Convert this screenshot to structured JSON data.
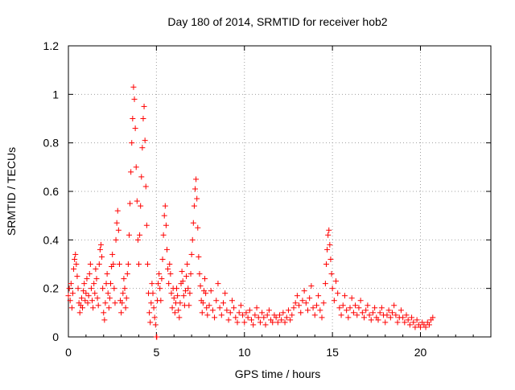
{
  "chart_data": {
    "type": "scatter",
    "title": "Day 180 of 2014, SRMTID for receiver hob2",
    "xlabel": "GPS time / hours",
    "ylabel": "SRMTID / TECUs",
    "xlim": [
      0,
      24
    ],
    "ylim": [
      0,
      1.2
    ],
    "xticks": [
      0,
      5,
      10,
      15,
      20
    ],
    "yticks": [
      0,
      0.2,
      0.4,
      0.6,
      0.8,
      1,
      1.2
    ],
    "xtick_labels": [
      "0",
      "5",
      "10",
      "15",
      "20"
    ],
    "ytick_labels": [
      "0",
      "0.2",
      "0.4",
      "0.6",
      "0.8",
      "1",
      "1.2"
    ],
    "grid": true,
    "marker": "plus",
    "marker_color": "#ff0000",
    "series": [
      {
        "name": "SRMTID",
        "points": [
          [
            0.0,
            0.17
          ],
          [
            0.05,
            0.2
          ],
          [
            0.1,
            0.15
          ],
          [
            0.15,
            0.22
          ],
          [
            0.2,
            0.12
          ],
          [
            0.25,
            0.18
          ],
          [
            0.3,
            0.28
          ],
          [
            0.35,
            0.32
          ],
          [
            0.4,
            0.34
          ],
          [
            0.45,
            0.3
          ],
          [
            0.5,
            0.25
          ],
          [
            0.55,
            0.2
          ],
          [
            0.6,
            0.14
          ],
          [
            0.65,
            0.1
          ],
          [
            0.7,
            0.13
          ],
          [
            0.75,
            0.16
          ],
          [
            0.8,
            0.12
          ],
          [
            0.85,
            0.19
          ],
          [
            0.9,
            0.22
          ],
          [
            0.95,
            0.15
          ],
          [
            1.0,
            0.18
          ],
          [
            1.05,
            0.24
          ],
          [
            1.1,
            0.14
          ],
          [
            1.15,
            0.17
          ],
          [
            1.2,
            0.26
          ],
          [
            1.25,
            0.3
          ],
          [
            1.3,
            0.2
          ],
          [
            1.35,
            0.15
          ],
          [
            1.4,
            0.12
          ],
          [
            1.45,
            0.22
          ],
          [
            1.5,
            0.18
          ],
          [
            1.55,
            0.28
          ],
          [
            1.6,
            0.24
          ],
          [
            1.65,
            0.16
          ],
          [
            1.7,
            0.13
          ],
          [
            1.75,
            0.3
          ],
          [
            1.8,
            0.36
          ],
          [
            1.85,
            0.38
          ],
          [
            1.9,
            0.33
          ],
          [
            1.95,
            0.2
          ],
          [
            2.0,
            0.1
          ],
          [
            2.05,
            0.07
          ],
          [
            2.1,
            0.14
          ],
          [
            2.15,
            0.22
          ],
          [
            2.2,
            0.26
          ],
          [
            2.25,
            0.18
          ],
          [
            2.3,
            0.12
          ],
          [
            2.35,
            0.16
          ],
          [
            2.4,
            0.22
          ],
          [
            2.45,
            0.29
          ],
          [
            2.5,
            0.34
          ],
          [
            2.55,
            0.3
          ],
          [
            2.6,
            0.2
          ],
          [
            2.65,
            0.14
          ],
          [
            2.7,
            0.4
          ],
          [
            2.75,
            0.47
          ],
          [
            2.8,
            0.52
          ],
          [
            2.85,
            0.44
          ],
          [
            2.9,
            0.3
          ],
          [
            2.95,
            0.15
          ],
          [
            3.0,
            0.1
          ],
          [
            3.05,
            0.14
          ],
          [
            3.1,
            0.18
          ],
          [
            3.15,
            0.24
          ],
          [
            3.2,
            0.2
          ],
          [
            3.25,
            0.12
          ],
          [
            3.3,
            0.16
          ],
          [
            3.35,
            0.26
          ],
          [
            3.4,
            0.3
          ],
          [
            3.45,
            0.42
          ],
          [
            3.5,
            0.55
          ],
          [
            3.55,
            0.68
          ],
          [
            3.6,
            0.8
          ],
          [
            3.65,
            0.9
          ],
          [
            3.7,
            1.03
          ],
          [
            3.75,
            0.98
          ],
          [
            3.8,
            0.86
          ],
          [
            3.85,
            0.7
          ],
          [
            3.9,
            0.56
          ],
          [
            3.95,
            0.4
          ],
          [
            4.0,
            0.3
          ],
          [
            4.05,
            0.42
          ],
          [
            4.1,
            0.54
          ],
          [
            4.15,
            0.66
          ],
          [
            4.2,
            0.78
          ],
          [
            4.25,
            0.9
          ],
          [
            4.3,
            0.95
          ],
          [
            4.35,
            0.81
          ],
          [
            4.4,
            0.62
          ],
          [
            4.45,
            0.46
          ],
          [
            4.5,
            0.3
          ],
          [
            4.55,
            0.18
          ],
          [
            4.6,
            0.1
          ],
          [
            4.65,
            0.06
          ],
          [
            4.7,
            0.14
          ],
          [
            4.75,
            0.22
          ],
          [
            4.8,
            0.18
          ],
          [
            4.85,
            0.12
          ],
          [
            4.9,
            0.08
          ],
          [
            4.95,
            0.05
          ],
          [
            5.0,
            0.0
          ],
          [
            5.02,
            0.0
          ],
          [
            5.05,
            0.15
          ],
          [
            5.1,
            0.22
          ],
          [
            5.15,
            0.26
          ],
          [
            5.2,
            0.2
          ],
          [
            5.25,
            0.15
          ],
          [
            5.3,
            0.24
          ],
          [
            5.35,
            0.32
          ],
          [
            5.4,
            0.42
          ],
          [
            5.45,
            0.5
          ],
          [
            5.5,
            0.54
          ],
          [
            5.55,
            0.46
          ],
          [
            5.6,
            0.36
          ],
          [
            5.65,
            0.28
          ],
          [
            5.7,
            0.22
          ],
          [
            5.75,
            0.3
          ],
          [
            5.8,
            0.26
          ],
          [
            5.85,
            0.18
          ],
          [
            5.9,
            0.12
          ],
          [
            5.95,
            0.2
          ],
          [
            6.0,
            0.16
          ],
          [
            6.05,
            0.1
          ],
          [
            6.1,
            0.14
          ],
          [
            6.15,
            0.2
          ],
          [
            6.2,
            0.17
          ],
          [
            6.25,
            0.11
          ],
          [
            6.3,
            0.08
          ],
          [
            6.35,
            0.14
          ],
          [
            6.4,
            0.22
          ],
          [
            6.45,
            0.27
          ],
          [
            6.5,
            0.23
          ],
          [
            6.55,
            0.17
          ],
          [
            6.6,
            0.13
          ],
          [
            6.65,
            0.19
          ],
          [
            6.7,
            0.25
          ],
          [
            6.75,
            0.3
          ],
          [
            6.8,
            0.2
          ],
          [
            6.85,
            0.13
          ],
          [
            6.9,
            0.18
          ],
          [
            6.95,
            0.26
          ],
          [
            7.0,
            0.34
          ],
          [
            7.05,
            0.4
          ],
          [
            7.1,
            0.47
          ],
          [
            7.15,
            0.54
          ],
          [
            7.2,
            0.61
          ],
          [
            7.25,
            0.65
          ],
          [
            7.3,
            0.57
          ],
          [
            7.35,
            0.45
          ],
          [
            7.4,
            0.33
          ],
          [
            7.45,
            0.26
          ],
          [
            7.5,
            0.21
          ],
          [
            7.55,
            0.15
          ],
          [
            7.6,
            0.1
          ],
          [
            7.65,
            0.14
          ],
          [
            7.7,
            0.19
          ],
          [
            7.75,
            0.24
          ],
          [
            7.8,
            0.18
          ],
          [
            7.85,
            0.12
          ],
          [
            7.9,
            0.09
          ],
          [
            8.0,
            0.13
          ],
          [
            8.1,
            0.19
          ],
          [
            8.2,
            0.11
          ],
          [
            8.3,
            0.08
          ],
          [
            8.4,
            0.15
          ],
          [
            8.5,
            0.22
          ],
          [
            8.6,
            0.12
          ],
          [
            8.7,
            0.09
          ],
          [
            8.8,
            0.14
          ],
          [
            8.9,
            0.18
          ],
          [
            9.0,
            0.11
          ],
          [
            9.1,
            0.07
          ],
          [
            9.2,
            0.1
          ],
          [
            9.3,
            0.15
          ],
          [
            9.4,
            0.12
          ],
          [
            9.5,
            0.08
          ],
          [
            9.6,
            0.06
          ],
          [
            9.7,
            0.1
          ],
          [
            9.8,
            0.13
          ],
          [
            9.9,
            0.09
          ],
          [
            10.0,
            0.06
          ],
          [
            10.1,
            0.1
          ],
          [
            10.2,
            0.08
          ],
          [
            10.3,
            0.11
          ],
          [
            10.4,
            0.07
          ],
          [
            10.5,
            0.05
          ],
          [
            10.6,
            0.09
          ],
          [
            10.7,
            0.12
          ],
          [
            10.8,
            0.08
          ],
          [
            10.9,
            0.06
          ],
          [
            11.0,
            0.1
          ],
          [
            11.1,
            0.08
          ],
          [
            11.2,
            0.05
          ],
          [
            11.3,
            0.09
          ],
          [
            11.4,
            0.11
          ],
          [
            11.5,
            0.07
          ],
          [
            11.6,
            0.06
          ],
          [
            11.7,
            0.09
          ],
          [
            11.8,
            0.08
          ],
          [
            11.9,
            0.06
          ],
          [
            12.0,
            0.09
          ],
          [
            12.1,
            0.07
          ],
          [
            12.2,
            0.1
          ],
          [
            12.3,
            0.06
          ],
          [
            12.4,
            0.08
          ],
          [
            12.5,
            0.11
          ],
          [
            12.6,
            0.07
          ],
          [
            12.7,
            0.09
          ],
          [
            12.8,
            0.12
          ],
          [
            12.9,
            0.14
          ],
          [
            13.0,
            0.17
          ],
          [
            13.1,
            0.13
          ],
          [
            13.2,
            0.1
          ],
          [
            13.3,
            0.15
          ],
          [
            13.4,
            0.19
          ],
          [
            13.5,
            0.14
          ],
          [
            13.6,
            0.11
          ],
          [
            13.7,
            0.16
          ],
          [
            13.8,
            0.21
          ],
          [
            13.9,
            0.12
          ],
          [
            14.0,
            0.09
          ],
          [
            14.1,
            0.13
          ],
          [
            14.2,
            0.17
          ],
          [
            14.3,
            0.11
          ],
          [
            14.4,
            0.08
          ],
          [
            14.5,
            0.14
          ],
          [
            14.6,
            0.22
          ],
          [
            14.65,
            0.3
          ],
          [
            14.7,
            0.36
          ],
          [
            14.75,
            0.42
          ],
          [
            14.8,
            0.44
          ],
          [
            14.85,
            0.38
          ],
          [
            14.9,
            0.32
          ],
          [
            14.95,
            0.26
          ],
          [
            15.0,
            0.2
          ],
          [
            15.1,
            0.15
          ],
          [
            15.2,
            0.23
          ],
          [
            15.3,
            0.18
          ],
          [
            15.4,
            0.12
          ],
          [
            15.5,
            0.09
          ],
          [
            15.6,
            0.13
          ],
          [
            15.7,
            0.17
          ],
          [
            15.8,
            0.11
          ],
          [
            15.9,
            0.08
          ],
          [
            16.0,
            0.12
          ],
          [
            16.1,
            0.16
          ],
          [
            16.2,
            0.1
          ],
          [
            16.3,
            0.13
          ],
          [
            16.4,
            0.09
          ],
          [
            16.5,
            0.12
          ],
          [
            16.6,
            0.15
          ],
          [
            16.7,
            0.1
          ],
          [
            16.8,
            0.08
          ],
          [
            16.9,
            0.11
          ],
          [
            17.0,
            0.13
          ],
          [
            17.1,
            0.09
          ],
          [
            17.2,
            0.07
          ],
          [
            17.3,
            0.1
          ],
          [
            17.4,
            0.12
          ],
          [
            17.5,
            0.08
          ],
          [
            17.6,
            0.07
          ],
          [
            17.7,
            0.1
          ],
          [
            17.8,
            0.12
          ],
          [
            17.9,
            0.09
          ],
          [
            18.0,
            0.06
          ],
          [
            18.1,
            0.09
          ],
          [
            18.2,
            0.11
          ],
          [
            18.3,
            0.08
          ],
          [
            18.4,
            0.1
          ],
          [
            18.5,
            0.13
          ],
          [
            18.6,
            0.09
          ],
          [
            18.7,
            0.06
          ],
          [
            18.8,
            0.08
          ],
          [
            18.9,
            0.11
          ],
          [
            19.0,
            0.08
          ],
          [
            19.1,
            0.06
          ],
          [
            19.2,
            0.09
          ],
          [
            19.3,
            0.07
          ],
          [
            19.4,
            0.05
          ],
          [
            19.5,
            0.08
          ],
          [
            19.6,
            0.06
          ],
          [
            19.7,
            0.04
          ],
          [
            19.8,
            0.07
          ],
          [
            19.9,
            0.05
          ],
          [
            20.0,
            0.04
          ],
          [
            20.1,
            0.06
          ],
          [
            20.2,
            0.05
          ],
          [
            20.3,
            0.04
          ],
          [
            20.4,
            0.06
          ],
          [
            20.5,
            0.05
          ],
          [
            20.6,
            0.07
          ],
          [
            20.7,
            0.08
          ]
        ]
      }
    ]
  }
}
